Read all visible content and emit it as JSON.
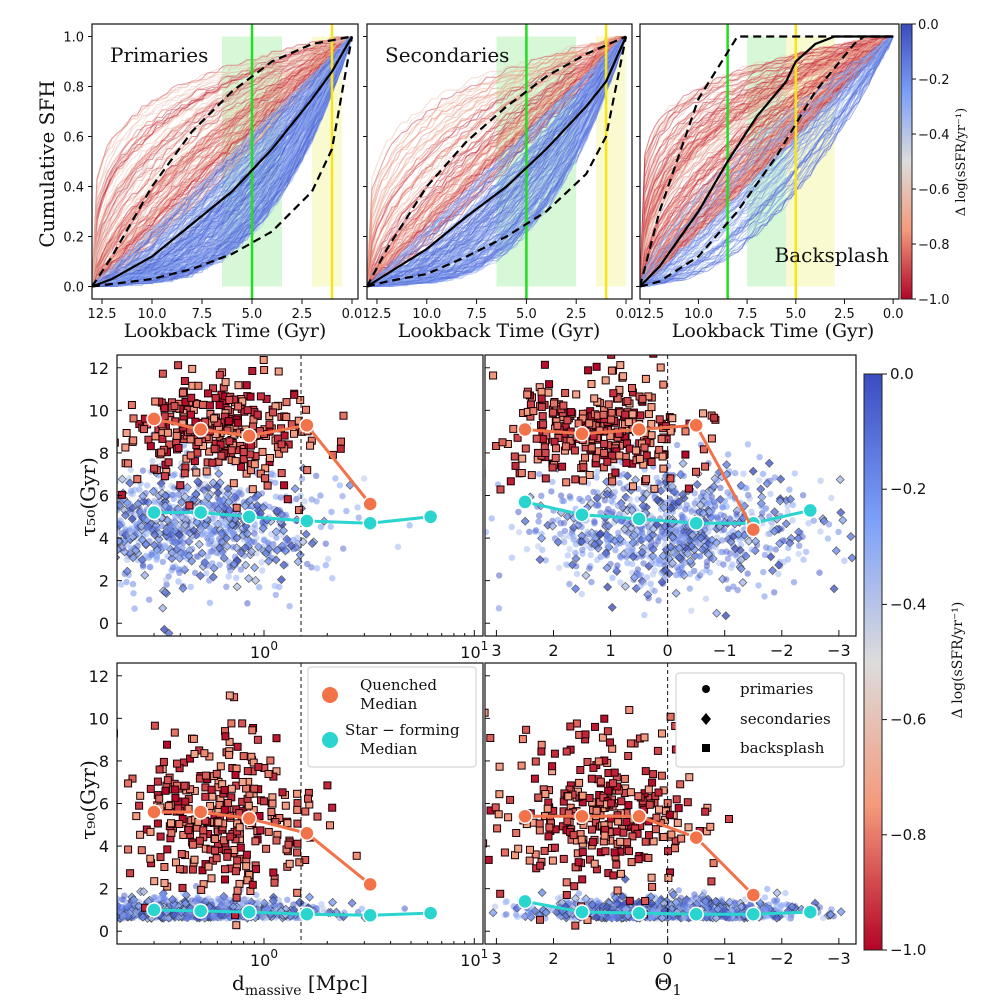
{
  "chart_data": [
    {
      "type": "line",
      "panels": [
        {
          "title": "Primaries",
          "bands": [
            [
              6.5,
              3.5
            ],
            [
              2.0,
              0.5
            ]
          ],
          "vlines": [
            5.0,
            1.0
          ],
          "median": [
            [
              13.0,
              0
            ],
            [
              12,
              0.03
            ],
            [
              10,
              0.12
            ],
            [
              8,
              0.25
            ],
            [
              6,
              0.38
            ],
            [
              4,
              0.55
            ],
            [
              2,
              0.75
            ],
            [
              1,
              0.86
            ],
            [
              0,
              1.0
            ]
          ],
          "upper": [
            [
              13.0,
              0
            ],
            [
              12,
              0.12
            ],
            [
              10,
              0.4
            ],
            [
              8,
              0.62
            ],
            [
              6,
              0.78
            ],
            [
              4,
              0.9
            ],
            [
              2,
              0.97
            ],
            [
              0,
              1.0
            ]
          ],
          "lower": [
            [
              13.0,
              0
            ],
            [
              12,
              0.01
            ],
            [
              10,
              0.03
            ],
            [
              8,
              0.07
            ],
            [
              6,
              0.13
            ],
            [
              4,
              0.22
            ],
            [
              2,
              0.38
            ],
            [
              1,
              0.55
            ],
            [
              0,
              1.0
            ]
          ],
          "n_red": 130,
          "n_blue": 230
        },
        {
          "title": "Secondaries",
          "bands": [
            [
              6.5,
              2.5
            ],
            [
              1.5,
              0.0
            ]
          ],
          "vlines": [
            5.0,
            1.0
          ],
          "median": [
            [
              13.0,
              0
            ],
            [
              12,
              0.05
            ],
            [
              10,
              0.15
            ],
            [
              8,
              0.28
            ],
            [
              6,
              0.4
            ],
            [
              4,
              0.55
            ],
            [
              2,
              0.72
            ],
            [
              1,
              0.82
            ],
            [
              0,
              1.0
            ]
          ],
          "upper": [
            [
              13.0,
              0
            ],
            [
              12,
              0.15
            ],
            [
              10,
              0.4
            ],
            [
              8,
              0.58
            ],
            [
              6,
              0.72
            ],
            [
              4,
              0.84
            ],
            [
              2,
              0.93
            ],
            [
              0,
              1.0
            ]
          ],
          "lower": [
            [
              13.0,
              0
            ],
            [
              12,
              0.02
            ],
            [
              10,
              0.05
            ],
            [
              8,
              0.12
            ],
            [
              6,
              0.2
            ],
            [
              4,
              0.3
            ],
            [
              2,
              0.45
            ],
            [
              1,
              0.6
            ],
            [
              0,
              1.0
            ]
          ],
          "n_red": 90,
          "n_blue": 160
        },
        {
          "title": "Backsplash",
          "bands": [
            [
              7.5,
              5.5
            ],
            [
              5.5,
              3.0
            ]
          ],
          "vlines": [
            8.5,
            5.0
          ],
          "median": [
            [
              13.0,
              0
            ],
            [
              12,
              0.08
            ],
            [
              10,
              0.3
            ],
            [
              8.5,
              0.5
            ],
            [
              7,
              0.68
            ],
            [
              5.5,
              0.82
            ],
            [
              5,
              0.9
            ],
            [
              4,
              0.97
            ],
            [
              3,
              1.0
            ],
            [
              0,
              1.0
            ]
          ],
          "upper": [
            [
              13.0,
              0
            ],
            [
              12,
              0.3
            ],
            [
              10,
              0.75
            ],
            [
              8,
              1.0
            ],
            [
              0,
              1.0
            ]
          ],
          "lower": [
            [
              13.0,
              0
            ],
            [
              12,
              0.02
            ],
            [
              10,
              0.12
            ],
            [
              8,
              0.3
            ],
            [
              6,
              0.52
            ],
            [
              4,
              0.78
            ],
            [
              2,
              0.97
            ],
            [
              1.5,
              1.0
            ],
            [
              0,
              1.0
            ]
          ],
          "n_red": 190,
          "n_blue": 60
        }
      ],
      "ylabel": "Cumulative SFH",
      "xlabel": "Lookback Time (Gyr)",
      "xlim": [
        13.0,
        -0.3
      ],
      "ylim": [
        -0.05,
        1.05
      ],
      "xticks": [
        "12.5",
        "10.0",
        "7.5",
        "5.0",
        "2.5",
        "0.0"
      ],
      "xtick_values": [
        12.5,
        10.0,
        7.5,
        5.0,
        2.5,
        0.0
      ],
      "yticks": [
        "0.0",
        "0.2",
        "0.4",
        "0.6",
        "0.8",
        "1.0"
      ],
      "ytick_values": [
        0.0,
        0.2,
        0.4,
        0.6,
        0.8,
        1.0
      ],
      "colorbar": {
        "label": "Δ log(sSFR/yr⁻¹)",
        "range": [
          -1.0,
          0.0
        ],
        "ticks": [
          "0.0",
          "−0.2",
          "−0.4",
          "−0.6",
          "−0.8",
          "−1.0"
        ],
        "tick_values": [
          0.0,
          -0.2,
          -0.4,
          -0.6,
          -0.8,
          -1.0
        ]
      }
    },
    {
      "type": "scatter",
      "ylabel_t50": "τ₅₀(Gyr)",
      "ylabel_t90": "τ₉₀(Gyr)",
      "xlabel_left": "d_massive [Mpc]",
      "xlabel_left_main": "d",
      "xlabel_left_sub": "massive",
      "xlabel_left_unit": " [Mpc]",
      "xlabel_right": "Θ₁",
      "xlabel_right_main": "Θ",
      "xlabel_right_sub": "1",
      "xlim_left_log": [
        0.2,
        11
      ],
      "xlim_right": [
        3.2,
        -3.3
      ],
      "ylim": [
        -0.6,
        12.6
      ],
      "yticks": [
        "0",
        "2",
        "4",
        "6",
        "8",
        "10",
        "12"
      ],
      "ytick_values": [
        0,
        2,
        4,
        6,
        8,
        10,
        12
      ],
      "xticks_left": [
        "10⁰",
        "10¹"
      ],
      "xticks_left_base": "10",
      "xticks_left_exps": [
        "0",
        "1"
      ],
      "xtick_left_values": [
        1,
        10
      ],
      "xticks_right": [
        "3",
        "2",
        "1",
        "0",
        "−1",
        "−2",
        "−3"
      ],
      "xtick_right_values": [
        3,
        2,
        1,
        0,
        -1,
        -2,
        -3
      ],
      "vline_left": 1.5,
      "vline_right": 0,
      "medians": {
        "t50_left": {
          "quenched": [
            [
              0.3,
              9.6
            ],
            [
              0.5,
              9.1
            ],
            [
              0.85,
              8.8
            ],
            [
              1.6,
              9.3
            ],
            [
              3.2,
              5.6
            ]
          ],
          "starforming": [
            [
              0.3,
              5.2
            ],
            [
              0.5,
              5.2
            ],
            [
              0.85,
              5.0
            ],
            [
              1.6,
              4.8
            ],
            [
              3.2,
              4.7
            ],
            [
              6.2,
              5.0
            ]
          ]
        },
        "t50_right": {
          "quenched": [
            [
              2.5,
              9.1
            ],
            [
              1.5,
              8.9
            ],
            [
              0.5,
              9.1
            ],
            [
              -0.5,
              9.3
            ],
            [
              -1.5,
              4.4
            ]
          ],
          "starforming": [
            [
              2.5,
              5.7
            ],
            [
              1.5,
              5.1
            ],
            [
              0.5,
              4.9
            ],
            [
              -0.5,
              4.7
            ],
            [
              -1.5,
              4.7
            ],
            [
              -2.5,
              5.3
            ]
          ]
        },
        "t90_left": {
          "quenched": [
            [
              0.3,
              5.6
            ],
            [
              0.5,
              5.6
            ],
            [
              0.85,
              5.3
            ],
            [
              1.6,
              4.6
            ],
            [
              3.2,
              2.2
            ]
          ],
          "starforming": [
            [
              0.3,
              1.0
            ],
            [
              0.5,
              0.95
            ],
            [
              0.85,
              0.9
            ],
            [
              1.6,
              0.8
            ],
            [
              3.2,
              0.75
            ],
            [
              6.2,
              0.85
            ]
          ]
        },
        "t90_right": {
          "quenched": [
            [
              2.5,
              5.4
            ],
            [
              1.5,
              5.4
            ],
            [
              0.5,
              5.4
            ],
            [
              -0.5,
              4.4
            ],
            [
              -1.5,
              1.7
            ]
          ],
          "starforming": [
            [
              2.5,
              1.4
            ],
            [
              1.5,
              0.9
            ],
            [
              0.5,
              0.85
            ],
            [
              -0.5,
              0.8
            ],
            [
              -1.5,
              0.8
            ],
            [
              -2.5,
              0.9
            ]
          ]
        }
      },
      "legend_left": [
        {
          "label_line1": "Quenched",
          "label_line2": "Median",
          "color": "#f2734a"
        },
        {
          "label_line1": "Star − forming",
          "label_line2": "Median",
          "color": "#2ad4cf"
        }
      ],
      "legend_right": [
        {
          "marker": "circle",
          "label": "primaries"
        },
        {
          "marker": "diamond",
          "label": "secondaries"
        },
        {
          "marker": "square",
          "label": "backsplash"
        }
      ],
      "colorbar": {
        "label": "Δ log(sSFR/yr⁻¹)",
        "range": [
          -1.0,
          0.0
        ],
        "ticks": [
          "0.0",
          "−0.2",
          "−0.4",
          "−0.6",
          "−0.8",
          "−1.0"
        ],
        "tick_values": [
          0.0,
          -0.2,
          -0.4,
          -0.6,
          -0.8,
          -1.0
        ]
      }
    }
  ],
  "colors": {
    "quenched": "#f2734a",
    "starforming": "#2ad4cf",
    "green_line": "#22dd22",
    "yellow_line": "#f5e61a",
    "green_band": "#c9f5c9",
    "yellow_band": "#f8f8c0"
  }
}
